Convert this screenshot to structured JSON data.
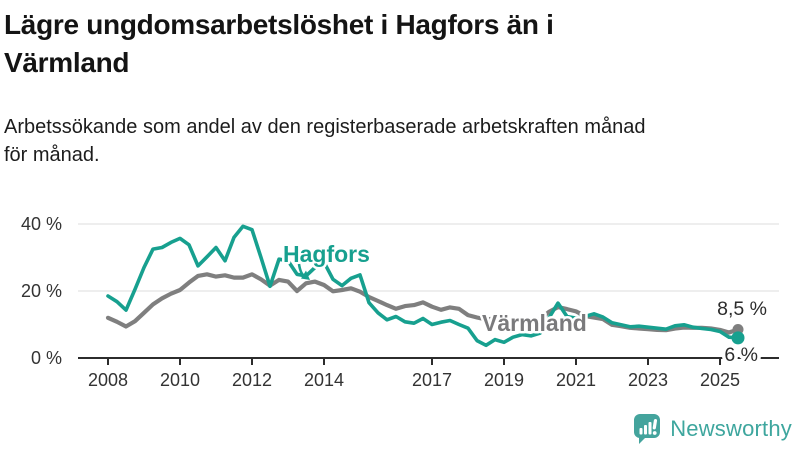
{
  "header": {
    "title": "Lägre ungdomsarbetslöshet i Hagfors än i\nVärmland",
    "subtitle": "Arbetssökande som andel av den registerbaserade arbetskraften månad\nför månad."
  },
  "chart_data": {
    "type": "line",
    "title": "Lägre ungdomsarbetslöshet i Hagfors än i Värmland",
    "subtitle": "Arbetssökande som andel av den registerbaserade arbetskraften månad för månad.",
    "unit": "%",
    "xlabel": "",
    "ylabel": "",
    "x_start": 2008.0,
    "x_step": 0.25,
    "x_end": 2025.5,
    "ylim": [
      0,
      44
    ],
    "grid": "horizontal",
    "legend_position": "inline-labels",
    "y_ticks": [
      {
        "value": 0,
        "label": "0 %"
      },
      {
        "value": 20,
        "label": "20 %"
      },
      {
        "value": 40,
        "label": "40 %"
      }
    ],
    "x_ticks": [
      {
        "value": 2008,
        "label": "2008"
      },
      {
        "value": 2010,
        "label": "2010"
      },
      {
        "value": 2012,
        "label": "2012"
      },
      {
        "value": 2014,
        "label": "2014"
      },
      {
        "value": 2017,
        "label": "2017"
      },
      {
        "value": 2019,
        "label": "2019"
      },
      {
        "value": 2021,
        "label": "2021"
      },
      {
        "value": 2023,
        "label": "2023"
      },
      {
        "value": 2025,
        "label": "2025"
      }
    ],
    "series": [
      {
        "name": "Hagfors",
        "color": "#17a08f",
        "end_label": "6 %",
        "latest_value": 6.0,
        "values": [
          18.5,
          16.8,
          14.3,
          20.5,
          27.0,
          32.5,
          33.0,
          34.5,
          35.7,
          33.8,
          27.5,
          30.2,
          33.0,
          29.0,
          36.0,
          39.3,
          38.3,
          30.0,
          21.4,
          29.5,
          29.0,
          25.0,
          24.5,
          27.0,
          28.6,
          23.5,
          21.6,
          23.8,
          24.8,
          16.5,
          13.5,
          11.4,
          12.4,
          10.8,
          10.4,
          11.8,
          10.0,
          10.7,
          11.2,
          10.0,
          8.9,
          5.2,
          3.8,
          5.5,
          4.7,
          6.2,
          7.0,
          6.6,
          7.4,
          12.0,
          16.4,
          12.4,
          11.9,
          12.4,
          13.2,
          12.2,
          10.5,
          9.9,
          9.3,
          9.5,
          9.2,
          8.9,
          8.6,
          9.6,
          9.9,
          9.2,
          8.8,
          8.5,
          7.9,
          6.2,
          6.0
        ]
      },
      {
        "name": "Värmland",
        "color": "#7f7f7f",
        "end_label": "8,5 %",
        "latest_value": 8.5,
        "values": [
          12.0,
          10.8,
          9.4,
          11.0,
          13.5,
          16.0,
          17.8,
          19.2,
          20.3,
          22.5,
          24.5,
          25.0,
          24.3,
          24.7,
          24.0,
          24.0,
          25.0,
          23.5,
          21.6,
          23.3,
          22.8,
          20.0,
          22.3,
          22.8,
          21.8,
          19.9,
          20.3,
          20.8,
          19.8,
          18.2,
          17.0,
          15.8,
          14.7,
          15.5,
          15.8,
          16.6,
          15.3,
          14.4,
          15.1,
          14.7,
          12.8,
          12.1,
          11.5,
          11.8,
          11.3,
          11.0,
          11.2,
          11.0,
          11.5,
          13.8,
          15.2,
          14.6,
          13.9,
          12.5,
          12.1,
          11.6,
          9.9,
          9.5,
          9.0,
          8.8,
          8.6,
          8.4,
          8.3,
          8.8,
          9.1,
          9.0,
          9.0,
          8.8,
          8.4,
          7.6,
          8.5
        ]
      }
    ],
    "colors": {
      "hagfors": "#17a08f",
      "varmland": "#7f7f7f",
      "axis": "#2c2c2c",
      "grid": "#e3e3e3",
      "tick_text": "#333333"
    }
  },
  "footer": {
    "brand": "Newsworthy",
    "logo_icon": "newsworthy-speech-bubble-chart-icon",
    "brand_color": "#3ea69e"
  }
}
